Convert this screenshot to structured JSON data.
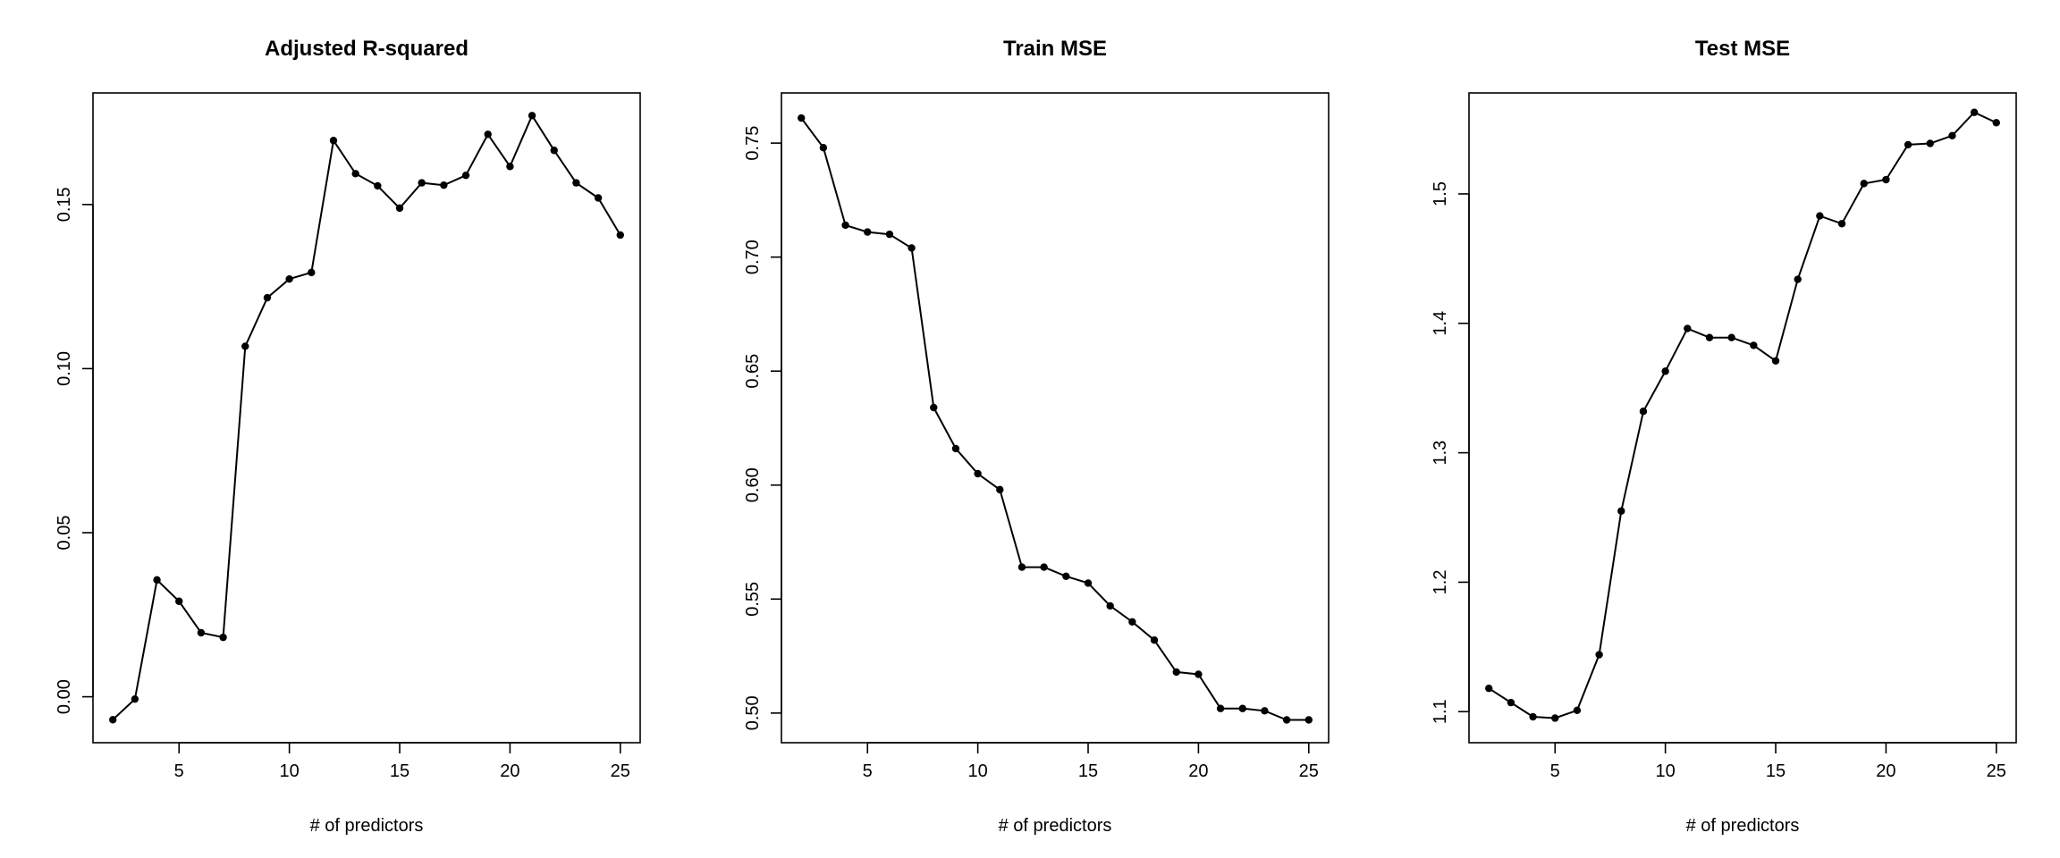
{
  "chart_data": [
    {
      "type": "line",
      "title": "Adjusted R-squared",
      "xlabel": "# of predictors",
      "ylabel": "",
      "xlim": [
        1.1,
        25.9
      ],
      "ylim": [
        -0.014,
        0.184
      ],
      "xticks": [
        5,
        10,
        15,
        20,
        25
      ],
      "xtick_labels": [
        "5",
        "10",
        "15",
        "20",
        "25"
      ],
      "yticks": [
        0.0,
        0.05,
        0.1,
        0.15
      ],
      "ytick_labels": [
        "0.00",
        "0.05",
        "0.10",
        "0.15"
      ],
      "grid": false,
      "series": [
        {
          "x": [
            2,
            3,
            4,
            5,
            6,
            7,
            8,
            9,
            10,
            11,
            12,
            13,
            14,
            15,
            16,
            17,
            18,
            19,
            20,
            21,
            22,
            23,
            24,
            25
          ],
          "y": [
            -0.007,
            -0.0007,
            0.0356,
            0.0291,
            0.0195,
            0.0181,
            0.1068,
            0.1216,
            0.1273,
            0.1293,
            0.1695,
            0.1594,
            0.1557,
            0.1489,
            0.1566,
            0.1559,
            0.1589,
            0.1714,
            0.1616,
            0.1771,
            0.1665,
            0.1566,
            0.152,
            0.1407
          ]
        }
      ]
    },
    {
      "type": "line",
      "title": "Train MSE",
      "xlabel": "# of predictors",
      "ylabel": "",
      "xlim": [
        1.1,
        25.9
      ],
      "ylim": [
        0.487,
        0.772
      ],
      "xticks": [
        5,
        10,
        15,
        20,
        25
      ],
      "xtick_labels": [
        "5",
        "10",
        "15",
        "20",
        "25"
      ],
      "yticks": [
        0.5,
        0.55,
        0.6,
        0.65,
        0.7,
        0.75
      ],
      "ytick_labels": [
        "0.50",
        "0.55",
        "0.60",
        "0.65",
        "0.70",
        "0.75"
      ],
      "grid": false,
      "series": [
        {
          "x": [
            2,
            3,
            4,
            5,
            6,
            7,
            8,
            9,
            10,
            11,
            12,
            13,
            14,
            15,
            16,
            17,
            18,
            19,
            20,
            21,
            22,
            23,
            24,
            25
          ],
          "y": [
            0.761,
            0.748,
            0.714,
            0.711,
            0.71,
            0.704,
            0.634,
            0.616,
            0.605,
            0.598,
            0.564,
            0.564,
            0.56,
            0.557,
            0.547,
            0.54,
            0.532,
            0.518,
            0.517,
            0.502,
            0.502,
            0.501,
            0.497,
            0.497
          ]
        }
      ]
    },
    {
      "type": "line",
      "title": "Test MSE",
      "xlabel": "# of predictors",
      "ylabel": "",
      "xlim": [
        1.1,
        25.9
      ],
      "ylim": [
        1.076,
        1.578
      ],
      "xticks": [
        5,
        10,
        15,
        20,
        25
      ],
      "xtick_labels": [
        "5",
        "10",
        "15",
        "20",
        "25"
      ],
      "yticks": [
        1.1,
        1.2,
        1.3,
        1.4,
        1.5
      ],
      "ytick_labels": [
        "1.1",
        "1.2",
        "1.3",
        "1.4",
        "1.5"
      ],
      "grid": false,
      "series": [
        {
          "x": [
            2,
            3,
            4,
            5,
            6,
            7,
            8,
            9,
            10,
            11,
            12,
            13,
            14,
            15,
            16,
            17,
            18,
            19,
            20,
            21,
            22,
            23,
            24,
            25
          ],
          "y": [
            1.118,
            1.107,
            1.096,
            1.095,
            1.101,
            1.144,
            1.255,
            1.332,
            1.363,
            1.396,
            1.389,
            1.389,
            1.383,
            1.371,
            1.434,
            1.483,
            1.477,
            1.508,
            1.511,
            1.538,
            1.539,
            1.545,
            1.563,
            1.555
          ]
        }
      ]
    }
  ]
}
